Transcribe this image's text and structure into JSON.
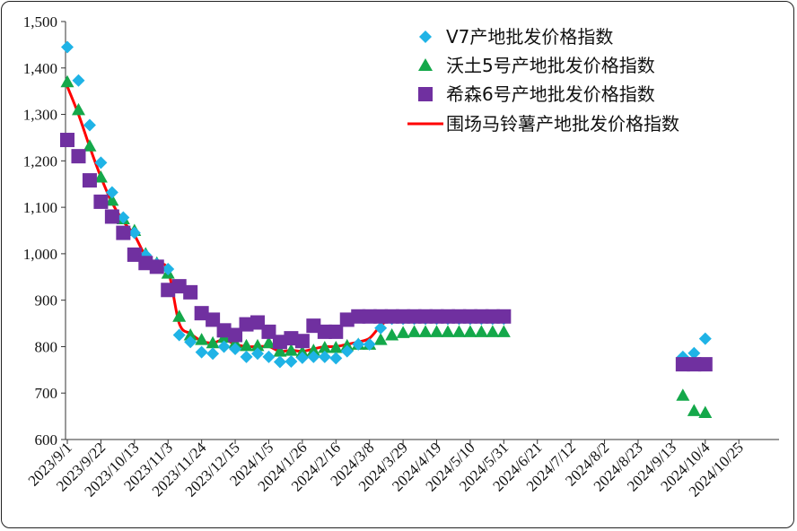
{
  "chart_data": {
    "type": "line",
    "title": "",
    "xlabel": "",
    "ylabel": "",
    "ylim": [
      600,
      1500
    ],
    "yticks": [
      "600",
      "700",
      "800",
      "900",
      "1,000",
      "1,100",
      "1,200",
      "1,300",
      "1,400",
      "1,500"
    ],
    "xticks": [
      "2023/9/1",
      "2023/9/22",
      "2023/10/13",
      "2023/11/3",
      "2023/11/24",
      "2023/12/15",
      "2024/1/5",
      "2024/1/26",
      "2024/2/16",
      "2024/3/8",
      "2024/3/29",
      "2024/4/19",
      "2024/5/10",
      "2024/5/31",
      "2024/6/21",
      "2024/7/12",
      "2024/8/2",
      "2024/8/23",
      "2024/9/13",
      "2024/10/4",
      "2024/10/25"
    ],
    "x_weeks_note": "x values are week index from 2023/9/1 (each tick = 3 weeks)",
    "legend_position": "top-right",
    "grid": false,
    "colors": {
      "v7": "#1fb3e6",
      "wotu": "#14a84a",
      "xisen": "#7030a0",
      "weichang": "#ff0000"
    },
    "series": [
      {
        "name": "V7产地批发价格指数",
        "marker": "diamond",
        "x": [
          0,
          1,
          2,
          3,
          4,
          5,
          6,
          7,
          8,
          9,
          10,
          11,
          12,
          13,
          14,
          15,
          16,
          17,
          18,
          19,
          20,
          21,
          22,
          23,
          24,
          25,
          26,
          27,
          28,
          29,
          30,
          31,
          32,
          33,
          34,
          35,
          36,
          37,
          38,
          39,
          55,
          56,
          57
        ],
        "values": [
          1445,
          1373,
          1277,
          1196,
          1132,
          1078,
          1045,
          997,
          978,
          967,
          825,
          810,
          788,
          785,
          800,
          795,
          778,
          785,
          778,
          767,
          768,
          776,
          778,
          778,
          775,
          790,
          805,
          805,
          840,
          860,
          860,
          860,
          860,
          860,
          860,
          860,
          860,
          860,
          860,
          860,
          778,
          786,
          817
        ]
      },
      {
        "name": "沃土5号产地批发价格指数",
        "marker": "triangle",
        "x": [
          0,
          1,
          2,
          3,
          4,
          5,
          6,
          7,
          8,
          9,
          10,
          11,
          12,
          13,
          14,
          15,
          16,
          17,
          18,
          19,
          20,
          21,
          22,
          23,
          24,
          25,
          26,
          27,
          28,
          29,
          30,
          31,
          32,
          33,
          34,
          35,
          36,
          37,
          38,
          39,
          55,
          56,
          57
        ],
        "values": [
          1370,
          1310,
          1232,
          1165,
          1115,
          1075,
          1050,
          1000,
          980,
          958,
          865,
          825,
          815,
          808,
          820,
          808,
          802,
          802,
          808,
          790,
          792,
          788,
          792,
          798,
          798,
          802,
          805,
          805,
          815,
          825,
          830,
          832,
          832,
          832,
          832,
          832,
          832,
          832,
          832,
          832,
          695,
          662,
          658
        ]
      },
      {
        "name": "希森6号产地批发价格指数",
        "marker": "square",
        "x": [
          0,
          1,
          2,
          3,
          4,
          5,
          6,
          7,
          8,
          9,
          10,
          11,
          12,
          13,
          14,
          15,
          16,
          17,
          18,
          19,
          20,
          21,
          22,
          23,
          24,
          25,
          26,
          27,
          28,
          29,
          30,
          31,
          32,
          33,
          34,
          35,
          36,
          37,
          38,
          39,
          55,
          56,
          57
        ],
        "values": [
          1245,
          1210,
          1158,
          1112,
          1080,
          1045,
          998,
          980,
          972,
          922,
          930,
          917,
          872,
          858,
          835,
          825,
          848,
          852,
          832,
          810,
          818,
          812,
          845,
          832,
          832,
          858,
          865,
          865,
          865,
          865,
          865,
          865,
          865,
          865,
          865,
          865,
          865,
          865,
          865,
          865,
          762,
          762,
          762
        ]
      },
      {
        "name": "围场马铃薯产地批发价格指数",
        "marker": "line",
        "x": [
          0,
          1,
          2,
          3,
          4,
          5,
          6,
          7,
          8,
          9,
          10,
          11,
          12,
          13,
          14,
          15,
          16,
          17,
          18,
          19,
          20,
          21,
          22,
          23,
          24,
          25,
          26,
          27,
          28,
          29,
          30,
          31,
          32,
          33,
          34,
          35,
          36,
          37,
          38,
          39,
          55,
          56,
          57
        ],
        "values": [
          1360,
          1300,
          1230,
          1165,
          1110,
          1070,
          1040,
          995,
          978,
          965,
          850,
          828,
          812,
          808,
          815,
          805,
          800,
          800,
          800,
          790,
          792,
          790,
          795,
          800,
          800,
          805,
          810,
          818,
          845,
          862,
          862,
          862,
          862,
          862,
          862,
          862,
          862,
          862,
          862,
          862,
          762,
          758,
          762
        ]
      }
    ]
  }
}
